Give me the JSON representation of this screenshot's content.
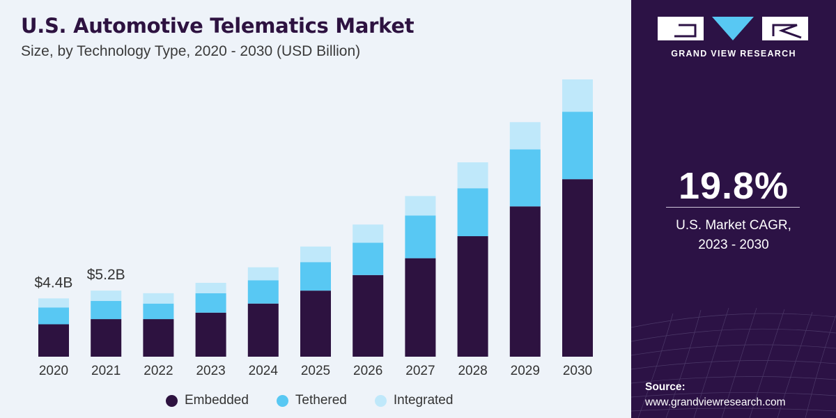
{
  "header": {
    "title": "U.S. Automotive Telematics Market",
    "subtitle": "Size, by Technology Type, 2020 - 2030 (USD Billion)"
  },
  "sidebar": {
    "brand": "GRAND VIEW RESEARCH",
    "cagr_value": "19.8%",
    "cagr_label_line1": "U.S. Market CAGR,",
    "cagr_label_line2": "2023 - 2030",
    "source_label": "Source:",
    "source_url": "www.grandviewresearch.com"
  },
  "colors": {
    "embedded": "#2d1240",
    "tethered": "#58c8f3",
    "integrated": "#bfe8fa",
    "sidebar_bg": "#2c1245"
  },
  "chart_data": {
    "type": "bar",
    "stacked": true,
    "categories": [
      "2020",
      "2021",
      "2022",
      "2023",
      "2024",
      "2025",
      "2026",
      "2027",
      "2028",
      "2029",
      "2030"
    ],
    "series": [
      {
        "name": "Embedded",
        "values": [
          2.5,
          2.9,
          2.9,
          3.4,
          4.1,
          5.1,
          6.3,
          7.6,
          9.3,
          11.6,
          13.7
        ]
      },
      {
        "name": "Tethered",
        "values": [
          1.3,
          1.4,
          1.2,
          1.5,
          1.8,
          2.2,
          2.5,
          3.3,
          3.7,
          4.4,
          5.2
        ]
      },
      {
        "name": "Integrated",
        "values": [
          0.7,
          0.8,
          0.8,
          0.8,
          1.0,
          1.2,
          1.4,
          1.5,
          2.0,
          2.1,
          2.5
        ]
      }
    ],
    "data_labels": {
      "2020": "$4.4B",
      "2021": "$5.2B"
    },
    "legend": "bottom",
    "grid": false
  }
}
